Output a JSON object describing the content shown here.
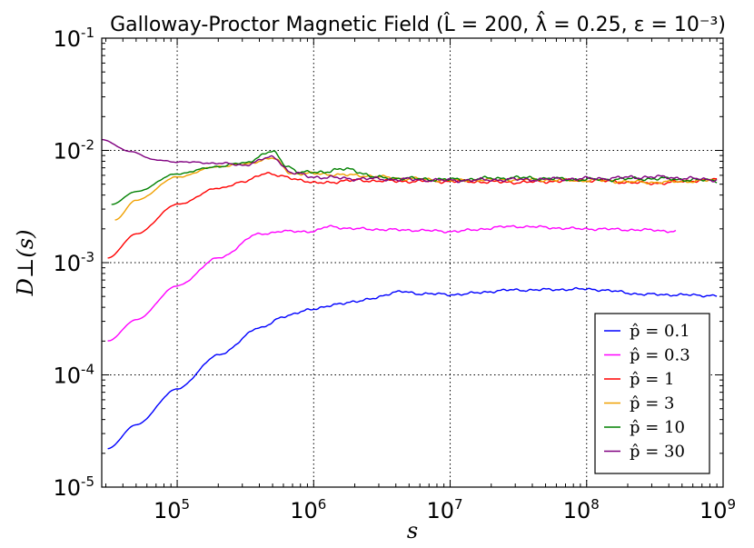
{
  "chart_data": {
    "type": "line",
    "title": "Galloway-Proctor Magnetic Field (L̂ = 200, λ̂ = 0.25, ε = 10⁻³)",
    "xlabel": "s",
    "ylabel": "D⊥(s)",
    "xscale": "log",
    "yscale": "log",
    "xlim": [
      28000,
      1000000000
    ],
    "ylim": [
      1e-05,
      0.1
    ],
    "grid": true,
    "legend_position": "lower-right",
    "x_ticks": [
      {
        "value": 100000,
        "base": "10",
        "exp": "5"
      },
      {
        "value": 1000000,
        "base": "10",
        "exp": "6"
      },
      {
        "value": 10000000,
        "base": "10",
        "exp": "7"
      },
      {
        "value": 100000000,
        "base": "10",
        "exp": "8"
      },
      {
        "value": 1000000000,
        "base": "10",
        "exp": "9"
      }
    ],
    "y_ticks": [
      {
        "value": 1e-05,
        "base": "10",
        "exp": "-5"
      },
      {
        "value": 0.0001,
        "base": "10",
        "exp": "-4"
      },
      {
        "value": 0.001,
        "base": "10",
        "exp": "-3"
      },
      {
        "value": 0.01,
        "base": "10",
        "exp": "-2"
      },
      {
        "value": 0.1,
        "base": "10",
        "exp": "-1"
      }
    ],
    "series": [
      {
        "name": "p̂ = 0.1",
        "color": "#0000ff",
        "jitter": 0.01,
        "x": [
          31000,
          50000,
          100000,
          200000,
          400000,
          600000,
          1000000,
          2000000,
          4500000,
          6000000,
          10000000,
          30000000,
          100000000,
          300000000,
          900000000
        ],
        "y": [
          2.2e-05,
          3.6e-05,
          7.5e-05,
          0.00015,
          0.00026,
          0.00033,
          0.00039,
          0.00045,
          0.00055,
          0.00053,
          0.00052,
          0.00057,
          0.00058,
          0.00052,
          0.00051
        ]
      },
      {
        "name": "p̂ = 0.3",
        "color": "#ff00ff",
        "jitter": 0.01,
        "x": [
          31000,
          50000,
          100000,
          200000,
          400000,
          600000,
          1000000,
          1300000,
          2000000,
          5000000,
          10000000,
          30000000,
          100000000,
          300000000,
          450000000
        ],
        "y": [
          0.0002,
          0.00031,
          0.00062,
          0.0011,
          0.0018,
          0.0019,
          0.0019,
          0.0021,
          0.002,
          0.00195,
          0.0019,
          0.0021,
          0.002,
          0.00195,
          0.0019
        ]
      },
      {
        "name": "p̂ = 1",
        "color": "#ff0000",
        "jitter": 0.012,
        "x": [
          31000,
          50000,
          100000,
          200000,
          300000,
          450000,
          600000,
          800000,
          1000000,
          2000000,
          5000000,
          10000000,
          30000000,
          100000000,
          300000000,
          900000000
        ],
        "y": [
          0.0011,
          0.0018,
          0.0033,
          0.0046,
          0.0052,
          0.0063,
          0.0058,
          0.0055,
          0.0051,
          0.0054,
          0.0053,
          0.0053,
          0.0052,
          0.0054,
          0.0051,
          0.0055
        ]
      },
      {
        "name": "p̂ = 3",
        "color": "#f0a000",
        "jitter": 0.012,
        "x": [
          35000,
          50000,
          100000,
          200000,
          300000,
          500000,
          700000,
          1000000,
          2000000,
          5000000,
          10000000,
          30000000,
          100000000,
          300000000,
          900000000
        ],
        "y": [
          0.0024,
          0.0036,
          0.0058,
          0.0072,
          0.0075,
          0.0085,
          0.0062,
          0.0062,
          0.006,
          0.0056,
          0.0054,
          0.0055,
          0.0054,
          0.0052,
          0.0054
        ]
      },
      {
        "name": "p̂ = 10",
        "color": "#008000",
        "jitter": 0.014,
        "x": [
          33000,
          50000,
          100000,
          200000,
          300000,
          500000,
          650000,
          800000,
          1000000,
          1800000,
          3000000,
          10000000,
          30000000,
          100000000,
          300000000,
          900000000
        ],
        "y": [
          0.0033,
          0.0043,
          0.0062,
          0.0072,
          0.0077,
          0.0097,
          0.0072,
          0.0063,
          0.0064,
          0.0068,
          0.0057,
          0.0055,
          0.0057,
          0.0055,
          0.0056,
          0.0054
        ]
      },
      {
        "name": "p̂ = 30",
        "color": "#800080",
        "jitter": 0.014,
        "x": [
          28000,
          45000,
          70000,
          100000,
          200000,
          300000,
          500000,
          700000,
          1000000,
          2000000,
          5000000,
          10000000,
          30000000,
          100000000,
          300000000,
          900000000
        ],
        "y": [
          0.0125,
          0.0098,
          0.0082,
          0.0079,
          0.0077,
          0.0074,
          0.0087,
          0.0063,
          0.0058,
          0.0056,
          0.0055,
          0.0054,
          0.0055,
          0.0056,
          0.0058,
          0.0055
        ]
      }
    ]
  }
}
